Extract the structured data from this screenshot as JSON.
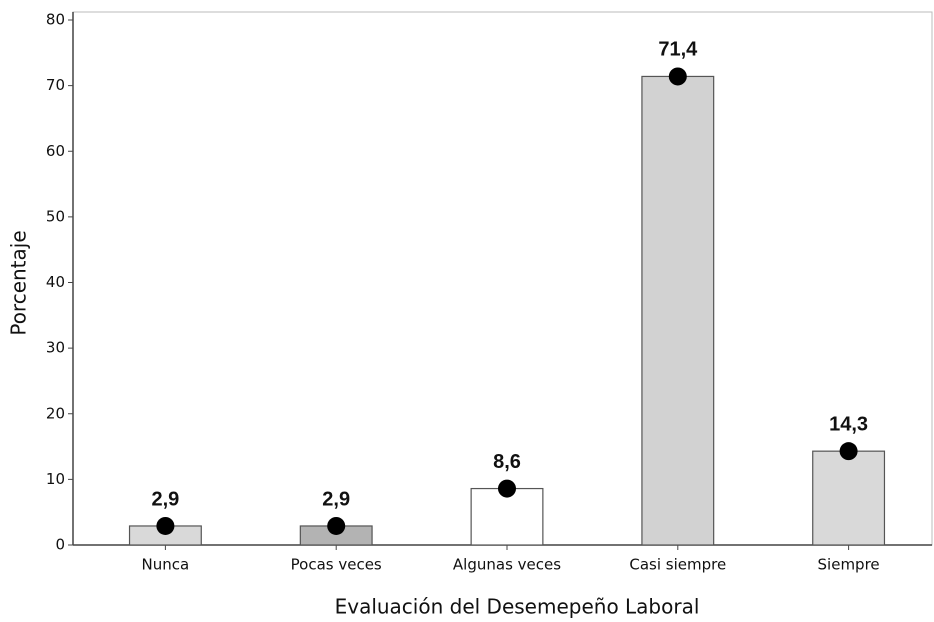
{
  "chart_data": {
    "type": "bar",
    "x_label": "Evaluación del Desemepeño Laboral",
    "y_label": "Porcentaje",
    "categories": [
      "Nunca",
      "Pocas veces",
      "Algunas veces",
      "Casi siempre",
      "Siempre"
    ],
    "values": [
      2.9,
      2.9,
      8.6,
      71.4,
      14.3
    ],
    "value_labels": [
      "2,9",
      "2,9",
      "8,6",
      "71,4",
      "14,3"
    ],
    "colors": [
      "#d9d9d9",
      "#b3b3b3",
      "#ffffff",
      "#d2d2d2",
      "#d9d9d9"
    ],
    "marker_color": "#000000",
    "ylim": [
      0,
      80
    ],
    "yticks": [
      0,
      10,
      20,
      30,
      40,
      50,
      60,
      70,
      80
    ],
    "grid": false
  }
}
